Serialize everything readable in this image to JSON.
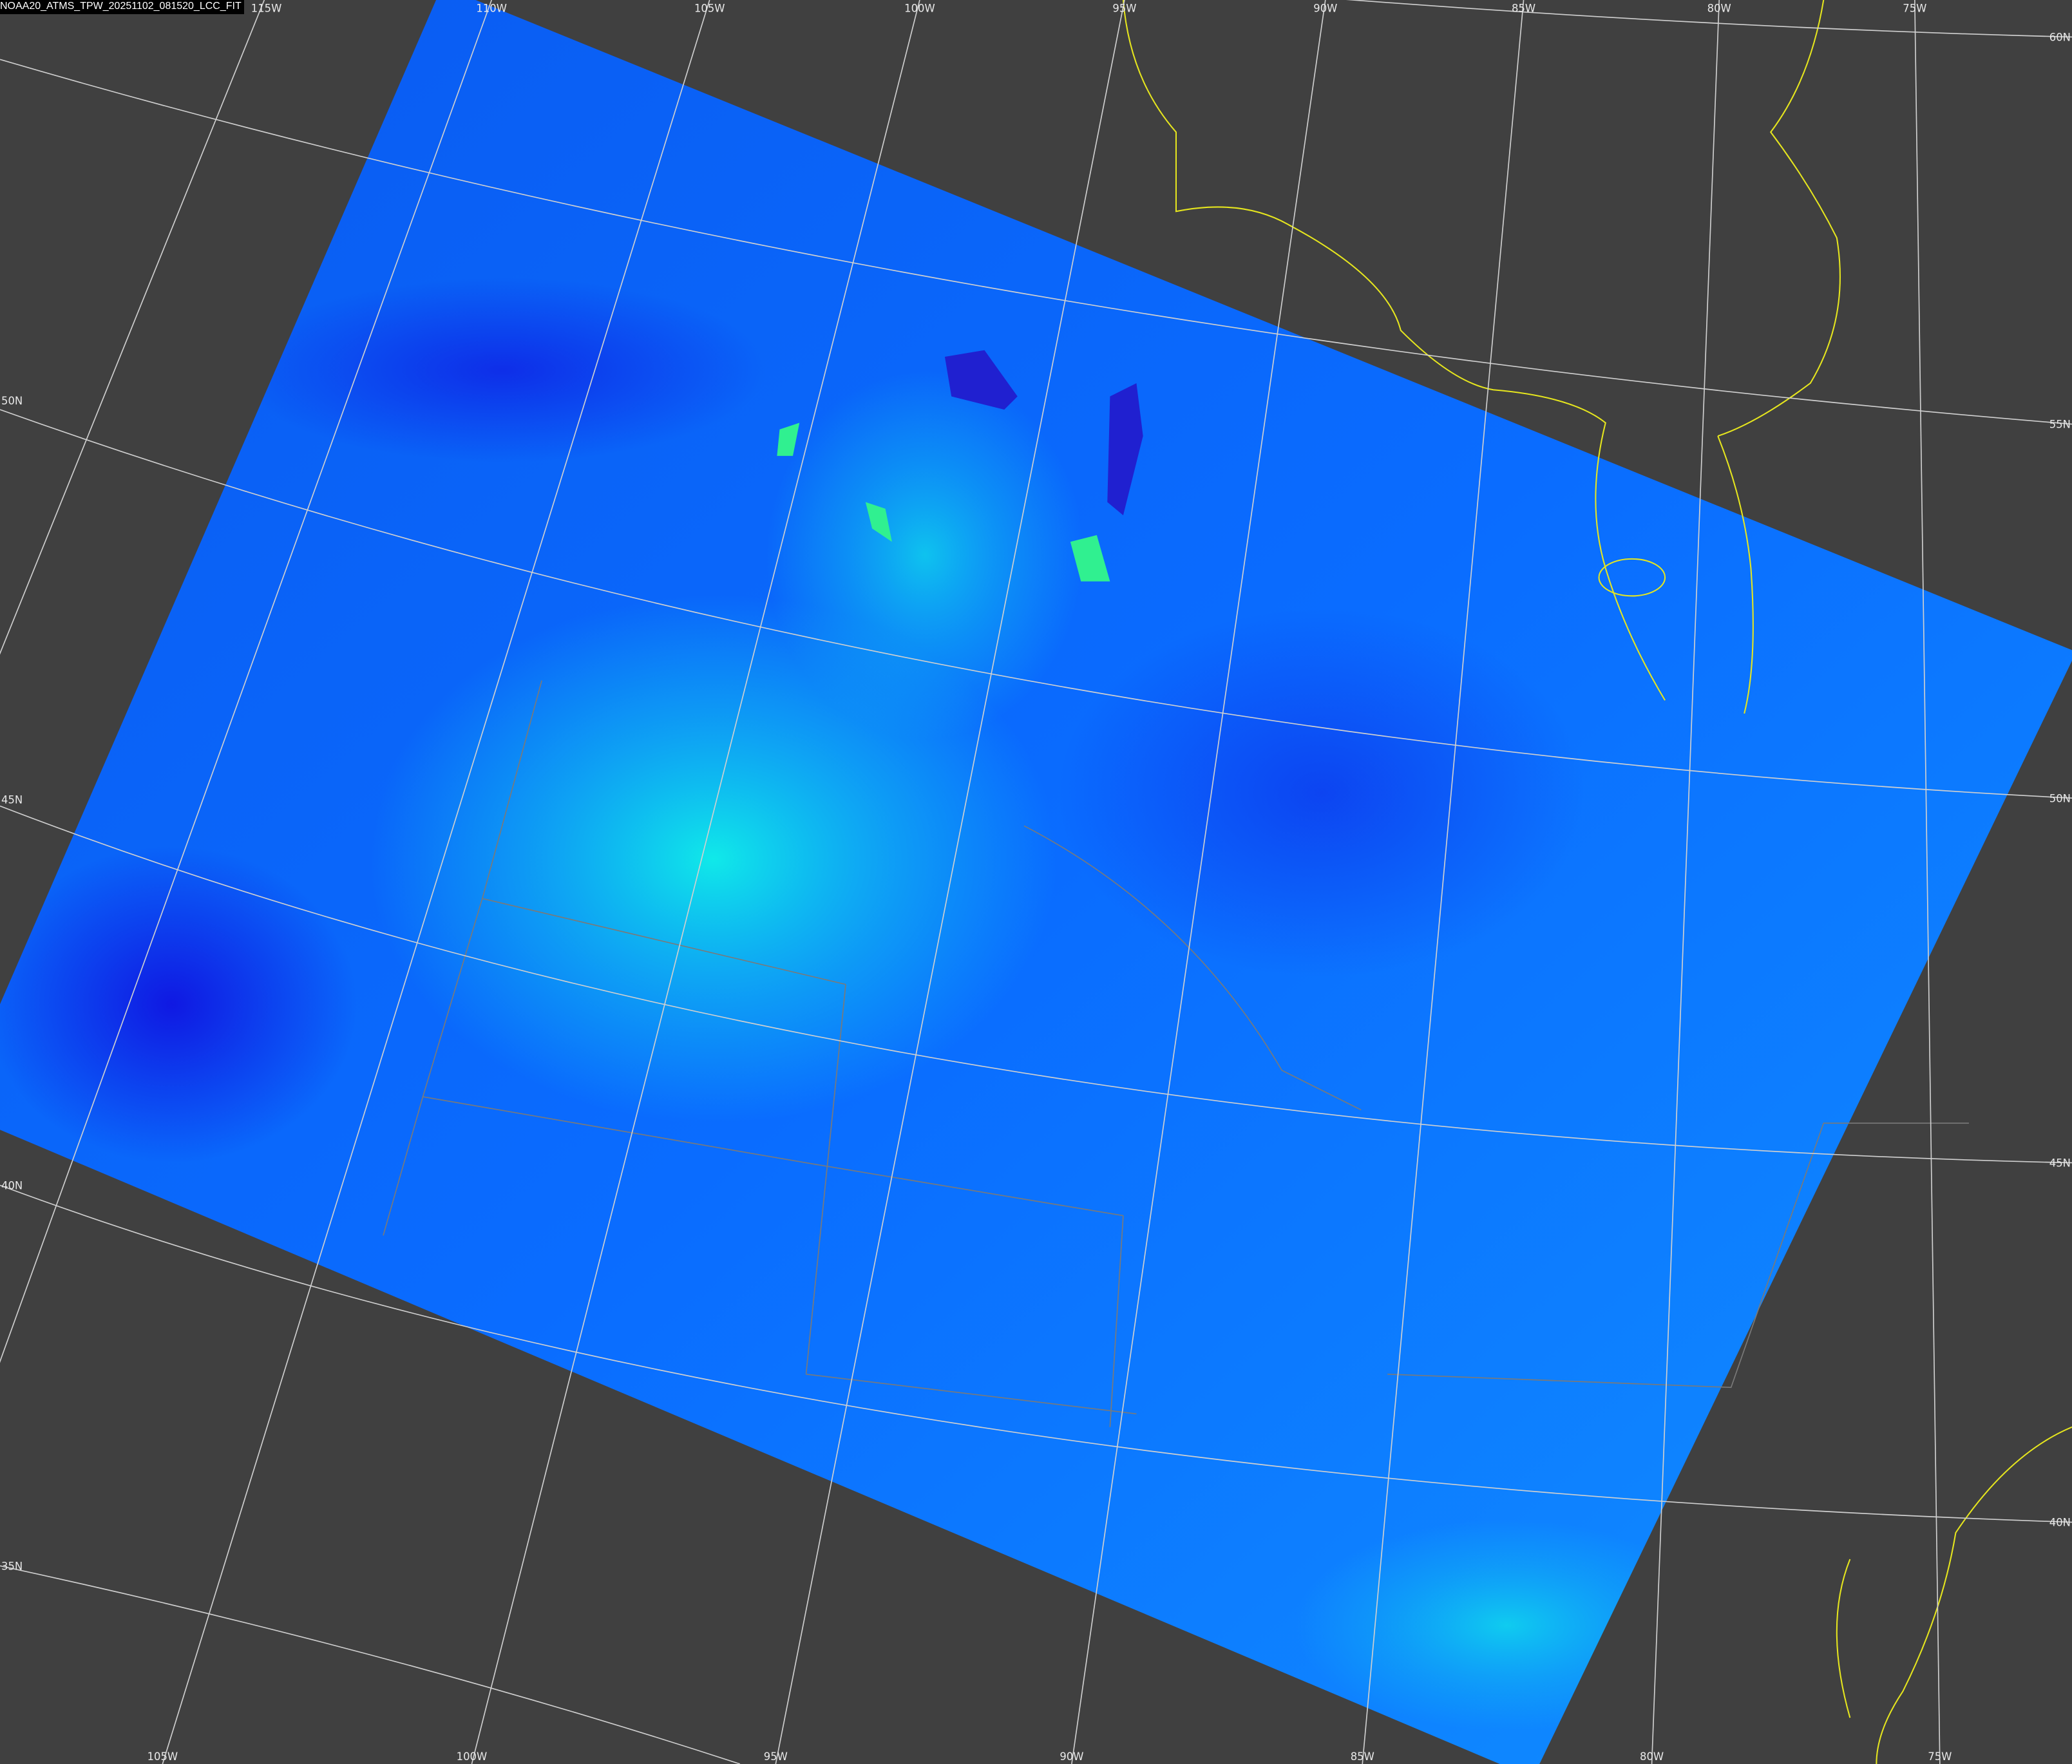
{
  "title": "NOAA20_ATMS_TPW_20251102_081520_LCC_FIT",
  "colors": {
    "background": "#404040",
    "graticule": "#d0d0d0",
    "coastline": "#e6e61e",
    "borders": "#7a7a7a",
    "tpw_low": "#1010e0",
    "tpw_mid": "#0a6cff",
    "tpw_high": "#10f0e8",
    "tpw_peak": "#20e890"
  },
  "top_lon_labels": [
    "115W",
    "110W",
    "105W",
    "100W",
    "95W",
    "90W",
    "85W",
    "80W",
    "75W"
  ],
  "bottom_lon_labels": [
    "105W",
    "100W",
    "95W",
    "90W",
    "85W",
    "80W",
    "75W"
  ],
  "left_lat_labels": [
    "50N",
    "45N",
    "40N",
    "35N"
  ],
  "right_lat_labels": [
    "60N",
    "55N",
    "50N",
    "45N",
    "40N"
  ]
}
